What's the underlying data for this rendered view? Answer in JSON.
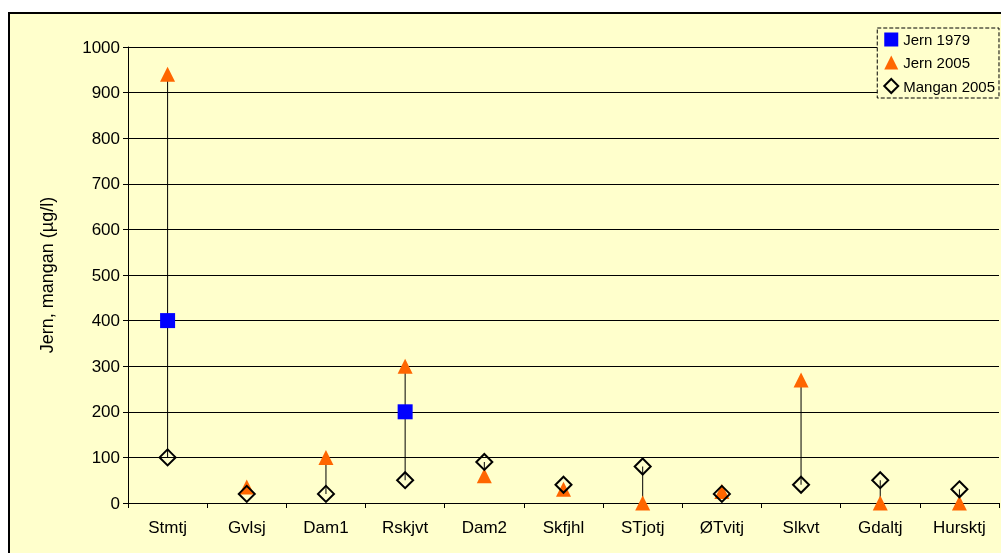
{
  "chart_data": {
    "type": "scatter",
    "ylabel": "Jern, mangan (µg/l)",
    "categories": [
      "Stmtj",
      "Gvlsj",
      "Dam1",
      "Rskjvt",
      "Dam2",
      "Skfjhl",
      "STjotj",
      "ØTvitj",
      "Slkvt",
      "Gdaltj",
      "Hursktj"
    ],
    "series": [
      {
        "name": "Jern 1979",
        "color": "#0000ff",
        "marker": "square",
        "values": [
          400,
          null,
          null,
          200,
          null,
          null,
          null,
          null,
          null,
          null,
          null
        ]
      },
      {
        "name": "Jern 2005",
        "color": "#ff6600",
        "marker": "triangle",
        "values": [
          940,
          35,
          100,
          300,
          60,
          30,
          0,
          25,
          270,
          0,
          0
        ]
      },
      {
        "name": "Mangan 2005",
        "color": "#000000",
        "marker": "diamond",
        "values": [
          100,
          20,
          20,
          50,
          90,
          40,
          80,
          20,
          40,
          50,
          30
        ]
      }
    ],
    "ylim": [
      0,
      1000
    ],
    "yticks": [
      0,
      100,
      200,
      300,
      400,
      500,
      600,
      700,
      800,
      900,
      1000
    ],
    "grid": "y",
    "legend": "top right"
  }
}
